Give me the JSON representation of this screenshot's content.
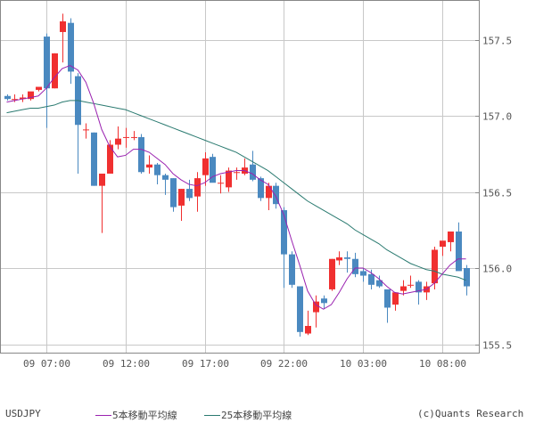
{
  "chart_data": {
    "type": "candlestick",
    "symbol": "USDJPY",
    "title": "USDJPY",
    "xlabel": "",
    "ylabel": "",
    "ylim": [
      155.45,
      157.76
    ],
    "y_ticks": [
      155.5,
      156.0,
      156.5,
      157.0,
      157.5
    ],
    "y_tick_labels": [
      "155.5",
      "156.0",
      "156.5",
      "157.0",
      "157.5"
    ],
    "x_tick_labels": [
      "09 07:00",
      "09 12:00",
      "09 17:00",
      "09 22:00",
      "10 03:00",
      "10 08:00"
    ],
    "x_tick_candle_index": [
      5,
      15,
      25,
      35,
      45,
      55
    ],
    "grid": true,
    "legend_position": "bottom",
    "colors": {
      "up": "#f03030",
      "down": "#4a89c0",
      "ma5": "#9a22b0",
      "ma25": "#2a7a70",
      "grid": "#c8c8c8",
      "frame": "#888888"
    },
    "candles": [
      {
        "o": 157.13,
        "h": 157.14,
        "l": 157.1,
        "c": 157.11
      },
      {
        "o": 157.11,
        "h": 157.14,
        "l": 157.09,
        "c": 157.11
      },
      {
        "o": 157.11,
        "h": 157.14,
        "l": 157.09,
        "c": 157.12
      },
      {
        "o": 157.11,
        "h": 157.15,
        "l": 157.1,
        "c": 157.16
      },
      {
        "o": 157.17,
        "h": 157.18,
        "l": 157.16,
        "c": 157.19
      },
      {
        "o": 157.52,
        "h": 157.54,
        "l": 156.92,
        "c": 157.18
      },
      {
        "o": 157.18,
        "h": 157.41,
        "l": 157.18,
        "c": 157.41
      },
      {
        "o": 157.55,
        "h": 157.67,
        "l": 157.35,
        "c": 157.62
      },
      {
        "o": 157.61,
        "h": 157.64,
        "l": 157.21,
        "c": 157.29
      },
      {
        "o": 157.26,
        "h": 157.28,
        "l": 156.62,
        "c": 156.94
      },
      {
        "o": 156.91,
        "h": 156.95,
        "l": 156.85,
        "c": 156.91
      },
      {
        "o": 156.89,
        "h": 156.89,
        "l": 156.54,
        "c": 156.54
      },
      {
        "o": 156.54,
        "h": 156.62,
        "l": 156.23,
        "c": 156.62
      },
      {
        "o": 156.62,
        "h": 156.84,
        "l": 156.62,
        "c": 156.81
      },
      {
        "o": 156.81,
        "h": 156.93,
        "l": 156.78,
        "c": 156.85
      },
      {
        "o": 156.86,
        "h": 156.92,
        "l": 156.79,
        "c": 156.86
      },
      {
        "o": 156.86,
        "h": 156.9,
        "l": 156.84,
        "c": 156.86
      },
      {
        "o": 156.86,
        "h": 156.88,
        "l": 156.62,
        "c": 156.63
      },
      {
        "o": 156.66,
        "h": 156.74,
        "l": 156.62,
        "c": 156.68
      },
      {
        "o": 156.68,
        "h": 156.69,
        "l": 156.55,
        "c": 156.61
      },
      {
        "o": 156.61,
        "h": 156.62,
        "l": 156.48,
        "c": 156.58
      },
      {
        "o": 156.59,
        "h": 156.59,
        "l": 156.37,
        "c": 156.4
      },
      {
        "o": 156.41,
        "h": 156.52,
        "l": 156.31,
        "c": 156.52
      },
      {
        "o": 156.52,
        "h": 156.58,
        "l": 156.44,
        "c": 156.46
      },
      {
        "o": 156.47,
        "h": 156.63,
        "l": 156.37,
        "c": 156.59
      },
      {
        "o": 156.61,
        "h": 156.76,
        "l": 156.54,
        "c": 156.72
      },
      {
        "o": 156.73,
        "h": 156.75,
        "l": 156.57,
        "c": 156.56
      },
      {
        "o": 156.56,
        "h": 156.61,
        "l": 156.49,
        "c": 156.56
      },
      {
        "o": 156.53,
        "h": 156.66,
        "l": 156.5,
        "c": 156.64
      },
      {
        "o": 156.63,
        "h": 156.66,
        "l": 156.58,
        "c": 156.63
      },
      {
        "o": 156.62,
        "h": 156.72,
        "l": 156.61,
        "c": 156.66
      },
      {
        "o": 156.68,
        "h": 156.77,
        "l": 156.57,
        "c": 156.58
      },
      {
        "o": 156.59,
        "h": 156.6,
        "l": 156.44,
        "c": 156.46
      },
      {
        "o": 156.46,
        "h": 156.56,
        "l": 156.38,
        "c": 156.54
      },
      {
        "o": 156.54,
        "h": 156.56,
        "l": 156.39,
        "c": 156.42
      },
      {
        "o": 156.38,
        "h": 156.4,
        "l": 155.87,
        "c": 156.09
      },
      {
        "o": 156.09,
        "h": 156.11,
        "l": 155.87,
        "c": 155.89
      },
      {
        "o": 155.88,
        "h": 155.88,
        "l": 155.55,
        "c": 155.58
      },
      {
        "o": 155.57,
        "h": 155.72,
        "l": 155.56,
        "c": 155.62
      },
      {
        "o": 155.71,
        "h": 155.82,
        "l": 155.61,
        "c": 155.78
      },
      {
        "o": 155.8,
        "h": 155.82,
        "l": 155.73,
        "c": 155.77
      },
      {
        "o": 155.86,
        "h": 156.06,
        "l": 155.85,
        "c": 156.06
      },
      {
        "o": 156.05,
        "h": 156.11,
        "l": 156.02,
        "c": 156.07
      },
      {
        "o": 156.07,
        "h": 156.11,
        "l": 155.97,
        "c": 156.06
      },
      {
        "o": 156.06,
        "h": 156.1,
        "l": 155.94,
        "c": 155.96
      },
      {
        "o": 155.98,
        "h": 156.0,
        "l": 155.91,
        "c": 155.95
      },
      {
        "o": 155.96,
        "h": 155.99,
        "l": 155.86,
        "c": 155.89
      },
      {
        "o": 155.92,
        "h": 155.95,
        "l": 155.87,
        "c": 155.88
      },
      {
        "o": 155.86,
        "h": 155.86,
        "l": 155.64,
        "c": 155.74
      },
      {
        "o": 155.76,
        "h": 155.82,
        "l": 155.72,
        "c": 155.84
      },
      {
        "o": 155.85,
        "h": 155.92,
        "l": 155.82,
        "c": 155.88
      },
      {
        "o": 155.89,
        "h": 155.95,
        "l": 155.87,
        "c": 155.89
      },
      {
        "o": 155.91,
        "h": 155.92,
        "l": 155.76,
        "c": 155.84
      },
      {
        "o": 155.84,
        "h": 155.91,
        "l": 155.79,
        "c": 155.88
      },
      {
        "o": 155.9,
        "h": 156.14,
        "l": 155.86,
        "c": 156.12
      },
      {
        "o": 156.14,
        "h": 156.17,
        "l": 156.08,
        "c": 156.18
      },
      {
        "o": 156.17,
        "h": 156.24,
        "l": 156.11,
        "c": 156.24
      },
      {
        "o": 156.24,
        "h": 156.3,
        "l": 156.06,
        "c": 155.98
      },
      {
        "o": 156.0,
        "h": 156.02,
        "l": 155.82,
        "c": 155.88
      }
    ],
    "ma5": [
      157.09,
      157.1,
      157.11,
      157.12,
      157.13,
      157.18,
      157.25,
      157.31,
      157.33,
      157.3,
      157.22,
      157.08,
      156.91,
      156.8,
      156.73,
      156.74,
      156.78,
      156.78,
      156.76,
      156.72,
      156.68,
      156.62,
      156.58,
      156.55,
      156.54,
      156.56,
      156.6,
      156.62,
      156.63,
      156.64,
      156.64,
      156.62,
      156.58,
      156.55,
      156.47,
      156.35,
      156.18,
      156.02,
      155.85,
      155.76,
      155.73,
      155.76,
      155.84,
      155.93,
      156.0,
      156.0,
      155.97,
      155.93,
      155.88,
      155.84,
      155.83,
      155.84,
      155.85,
      155.86,
      155.9,
      155.96,
      156.02,
      156.06,
      156.06
    ],
    "ma25": [
      157.02,
      157.03,
      157.04,
      157.05,
      157.05,
      157.06,
      157.07,
      157.09,
      157.1,
      157.1,
      157.09,
      157.08,
      157.07,
      157.06,
      157.05,
      157.04,
      157.02,
      157.0,
      156.98,
      156.96,
      156.94,
      156.92,
      156.9,
      156.88,
      156.86,
      156.84,
      156.82,
      156.8,
      156.78,
      156.76,
      156.73,
      156.7,
      156.67,
      156.64,
      156.6,
      156.56,
      156.52,
      156.48,
      156.44,
      156.41,
      156.38,
      156.35,
      156.32,
      156.29,
      156.25,
      156.22,
      156.19,
      156.16,
      156.12,
      156.09,
      156.06,
      156.03,
      156.01,
      155.99,
      155.98,
      155.96,
      155.95,
      155.94,
      155.92
    ]
  },
  "legend": {
    "symbol": "USDJPY",
    "ma5_label": "5本移動平均線",
    "ma25_label": "25本移動平均線",
    "credit": "(c)Quants Research"
  }
}
